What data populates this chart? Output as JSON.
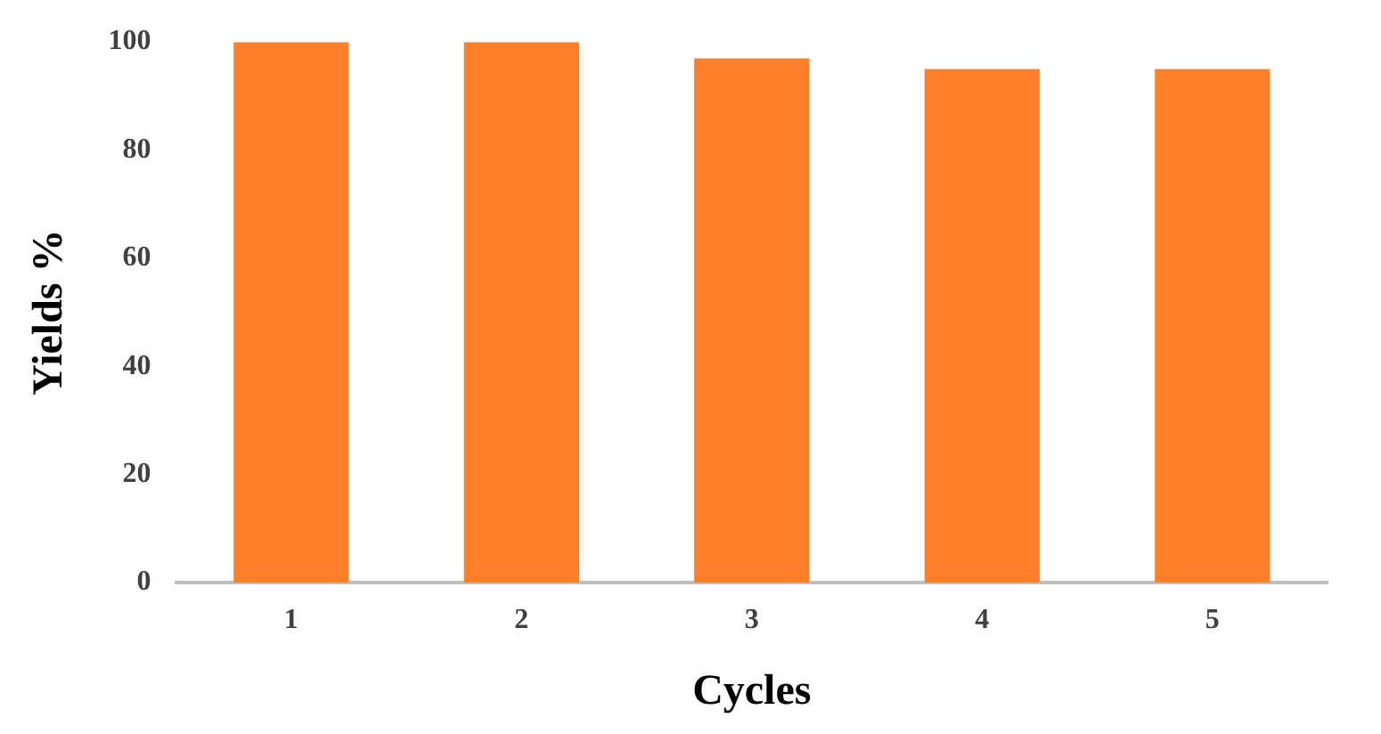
{
  "chart_data": {
    "type": "bar",
    "xlabel": "Cycles",
    "ylabel": "Yields %",
    "categories": [
      "1",
      "2",
      "3",
      "4",
      "5"
    ],
    "values": [
      100,
      100,
      97,
      95,
      95
    ],
    "color": "#ff7f2a",
    "ylim": [
      0,
      100
    ],
    "yticks": [
      0,
      20,
      40,
      60,
      80,
      100
    ],
    "grid": false,
    "legend": false
  }
}
